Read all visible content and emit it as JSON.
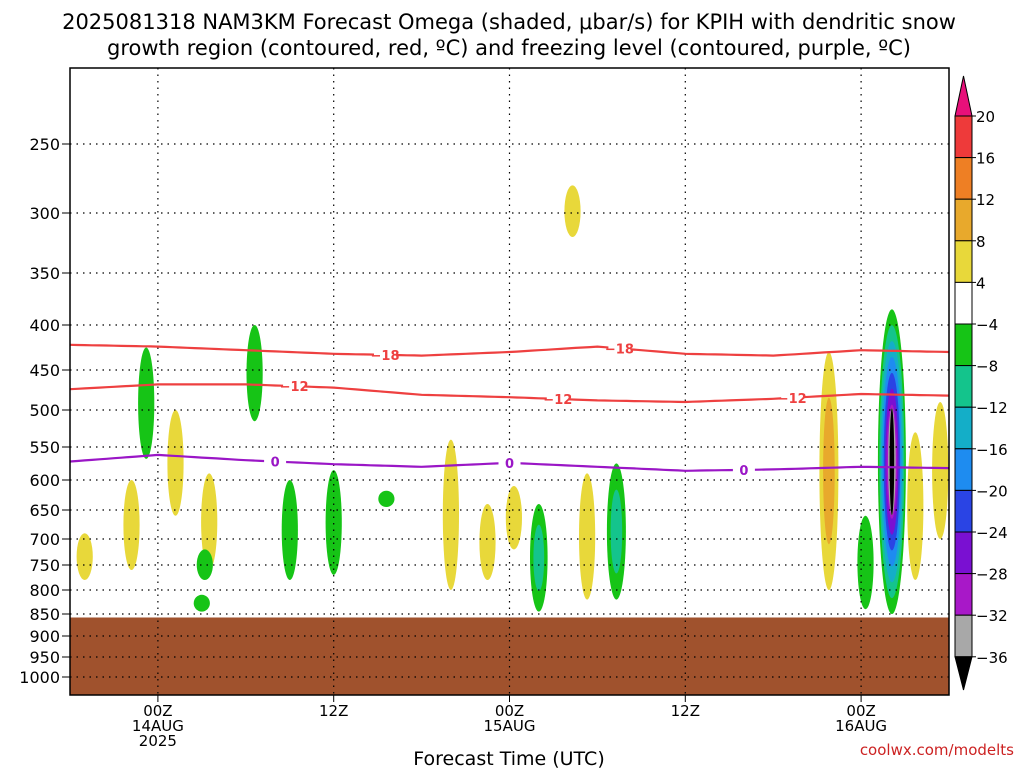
{
  "chart_data": {
    "type": "heatmap",
    "title_line1": "2025081318 NAM3KM Forecast Omega (shaded, μbar/s) for KPIH with dendritic snow",
    "title_line2": "growth region (contoured, red, ºC) and freezing level (contoured, purple, ºC)",
    "xlabel": "Forecast Time (UTC)",
    "credit": "coolwx.com/modelts",
    "y_axis": {
      "unit": "hPa",
      "inverted": true,
      "range": [
        1000,
        200
      ],
      "ticks": [
        250,
        300,
        350,
        400,
        450,
        500,
        550,
        600,
        650,
        700,
        750,
        800,
        850,
        900,
        950,
        1000
      ],
      "grid": "dotted"
    },
    "x_axis": {
      "range_hours": [
        -6,
        54
      ],
      "ticks": [
        {
          "hour": 0,
          "lines": [
            "00Z",
            "14AUG",
            "2025"
          ]
        },
        {
          "hour": 12,
          "lines": [
            "12Z"
          ]
        },
        {
          "hour": 24,
          "lines": [
            "00Z",
            "15AUG"
          ]
        },
        {
          "hour": 36,
          "lines": [
            "12Z"
          ]
        },
        {
          "hour": 48,
          "lines": [
            "00Z",
            "16AUG"
          ]
        }
      ],
      "grid": "dotted"
    },
    "colorbar": {
      "levels": [
        20,
        16,
        12,
        8,
        4,
        -4,
        -8,
        -12,
        -16,
        -20,
        -24,
        -28,
        -32,
        -36
      ],
      "labels": [
        "20",
        "16",
        "12",
        "8",
        "4",
        "−4",
        "−8",
        "−12",
        "−16",
        "−20",
        "−24",
        "−28",
        "−32",
        "−36"
      ],
      "colors": {
        "above_20": "#e8107a",
        "16_20": "#ee3a3a",
        "12_16": "#ee7f24",
        "8_12": "#e8a92c",
        "4_8": "#e8d83a",
        "neg4_4": "#ffffff",
        "neg8_neg4": "#16c416",
        "neg12_neg8": "#14c48c",
        "neg16_neg12": "#14aec8",
        "neg20_neg16": "#1e8cf0",
        "neg24_neg20": "#2a44e4",
        "neg28_neg24": "#7a10d2",
        "neg32_neg28": "#a818c8",
        "neg36_neg32": "#a8a8a8",
        "below_neg36": "#000000"
      }
    },
    "contours": [
      {
        "label": "−18",
        "color": "#ee4040",
        "hours": [
          -6,
          0,
          6,
          12,
          18,
          24,
          30,
          36,
          42,
          48,
          54
        ],
        "pressure": [
          422,
          424,
          428,
          432,
          434,
          430,
          424,
          432,
          434,
          428,
          430
        ],
        "label_hours": [
          15.5,
          31.5
        ]
      },
      {
        "label": "−12",
        "color": "#ee4040",
        "hours": [
          -6,
          0,
          6,
          12,
          18,
          24,
          30,
          36,
          42,
          48,
          54
        ],
        "pressure": [
          474,
          468,
          468,
          472,
          481,
          484,
          488,
          490,
          486,
          480,
          482
        ],
        "label_hours": [
          9.3,
          27.3,
          43.3
        ]
      },
      {
        "label": "0",
        "color": "#9a16c6",
        "hours": [
          -6,
          0,
          6,
          12,
          18,
          24,
          30,
          36,
          42,
          48,
          54
        ],
        "pressure": [
          572,
          562,
          570,
          576,
          580,
          574,
          580,
          586,
          584,
          580,
          582
        ],
        "label_hours": [
          8,
          24,
          40
        ]
      }
    ],
    "terrain_top_hpa": 858,
    "terrain_color": "#a0522d",
    "omega_features": [
      {
        "hour": -5.0,
        "p_top": 690,
        "p_bot": 780,
        "value": 6
      },
      {
        "hour": -0.8,
        "p_top": 425,
        "p_bot": 568,
        "value": -6
      },
      {
        "hour": -1.8,
        "p_top": 600,
        "p_bot": 760,
        "value": 6
      },
      {
        "hour": 1.2,
        "p_top": 500,
        "p_bot": 660,
        "value": 6
      },
      {
        "hour": 3.5,
        "p_top": 590,
        "p_bot": 760,
        "value": 6
      },
      {
        "hour": 3.2,
        "p_top": 720,
        "p_bot": 780,
        "value": -6
      },
      {
        "hour": 3.0,
        "p_top": 810,
        "p_bot": 845,
        "value": -6
      },
      {
        "hour": 6.6,
        "p_top": 400,
        "p_bot": 515,
        "value": -6
      },
      {
        "hour": 9.0,
        "p_top": 600,
        "p_bot": 780,
        "value": -6
      },
      {
        "hour": 12.0,
        "p_top": 585,
        "p_bot": 770,
        "value": -6
      },
      {
        "hour": 15.6,
        "p_top": 618,
        "p_bot": 645,
        "value": -6
      },
      {
        "hour": 20.0,
        "p_top": 540,
        "p_bot": 800,
        "value": 6
      },
      {
        "hour": 22.5,
        "p_top": 640,
        "p_bot": 780,
        "value": 6
      },
      {
        "hour": 26.0,
        "p_top": 640,
        "p_bot": 845,
        "value": -8
      },
      {
        "hour": 24.3,
        "p_top": 610,
        "p_bot": 720,
        "value": 6
      },
      {
        "hour": 29.3,
        "p_top": 590,
        "p_bot": 820,
        "value": 6
      },
      {
        "hour": 31.3,
        "p_top": 575,
        "p_bot": 820,
        "value": -10
      },
      {
        "hour": 28.3,
        "p_top": 280,
        "p_bot": 320,
        "value": 6
      },
      {
        "hour": 45.8,
        "p_top": 430,
        "p_bot": 800,
        "value": 10
      },
      {
        "hour": 48.3,
        "p_top": 660,
        "p_bot": 840,
        "value": -6
      },
      {
        "hour": 50.1,
        "p_top": 385,
        "p_bot": 850,
        "value": -40
      },
      {
        "hour": 51.7,
        "p_top": 530,
        "p_bot": 780,
        "value": 6
      },
      {
        "hour": 53.4,
        "p_top": 490,
        "p_bot": 700,
        "value": 6
      }
    ]
  }
}
